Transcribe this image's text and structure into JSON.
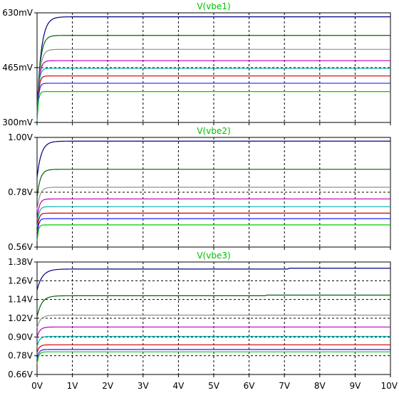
{
  "chart_data": [
    {
      "type": "line",
      "title": "V(vbe1)",
      "x_range": [
        0,
        10
      ],
      "ylim": [
        300,
        630
      ],
      "y_unit": "mV",
      "yticks": [
        {
          "value": 630,
          "label": "630mV"
        },
        {
          "value": 465,
          "label": "465mV"
        },
        {
          "value": 300,
          "label": "300mV"
        }
      ],
      "grid": true,
      "series": [
        {
          "color": "#000080",
          "start": 340,
          "final": 618,
          "tau": 0.12
        },
        {
          "color": "#006400",
          "start": 335,
          "final": 562,
          "tau": 0.09
        },
        {
          "color": "#909090",
          "start": 330,
          "final": 520,
          "tau": 0.08
        },
        {
          "color": "#c000c0",
          "start": 325,
          "final": 486,
          "tau": 0.06
        },
        {
          "color": "#00b0b0",
          "start": 320,
          "final": 463,
          "tau": 0.05
        },
        {
          "color": "#d00000",
          "start": 315,
          "final": 440,
          "tau": 0.045
        },
        {
          "color": "#2020ff",
          "start": 310,
          "final": 418,
          "tau": 0.04
        },
        {
          "color": "#00cc00",
          "start": 305,
          "final": 393,
          "tau": 0.035
        }
      ]
    },
    {
      "type": "line",
      "title": "V(vbe2)",
      "x_range": [
        0,
        10
      ],
      "ylim": [
        0.56,
        1.0
      ],
      "y_unit": "V",
      "yticks": [
        {
          "value": 1.0,
          "label": "1.00V"
        },
        {
          "value": 0.78,
          "label": "0.78V"
        },
        {
          "value": 0.56,
          "label": "0.56V"
        }
      ],
      "grid": true,
      "series": [
        {
          "color": "#000080",
          "start": 0.84,
          "final": 0.985,
          "tau": 0.12
        },
        {
          "color": "#006400",
          "start": 0.76,
          "final": 0.872,
          "tau": 0.09
        },
        {
          "color": "#909090",
          "start": 0.71,
          "final": 0.8,
          "tau": 0.08
        },
        {
          "color": "#c000c0",
          "start": 0.67,
          "final": 0.753,
          "tau": 0.06
        },
        {
          "color": "#00b0b0",
          "start": 0.64,
          "final": 0.722,
          "tau": 0.05
        },
        {
          "color": "#d00000",
          "start": 0.62,
          "final": 0.696,
          "tau": 0.045
        },
        {
          "color": "#2020ff",
          "start": 0.6,
          "final": 0.674,
          "tau": 0.04
        },
        {
          "color": "#00cc00",
          "start": 0.585,
          "final": 0.649,
          "tau": 0.035
        }
      ]
    },
    {
      "type": "line",
      "title": "V(vbe3)",
      "x_range": [
        0,
        10
      ],
      "x_ticks": [
        "0V",
        "1V",
        "2V",
        "3V",
        "4V",
        "5V",
        "6V",
        "7V",
        "8V",
        "9V",
        "10V"
      ],
      "ylim": [
        0.66,
        1.38
      ],
      "y_unit": "V",
      "yticks": [
        {
          "value": 1.38,
          "label": "1.38V"
        },
        {
          "value": 1.26,
          "label": "1.26V"
        },
        {
          "value": 1.14,
          "label": "1.14V"
        },
        {
          "value": 1.02,
          "label": "1.02V"
        },
        {
          "value": 0.9,
          "label": "0.90V"
        },
        {
          "value": 0.78,
          "label": "0.78V"
        },
        {
          "value": 0.66,
          "label": "0.66V"
        }
      ],
      "grid": true,
      "series": [
        {
          "color": "#000080",
          "start": 1.2,
          "final": 1.335,
          "tau": 0.15,
          "step_x": 7.1,
          "step_dy": 0.005
        },
        {
          "color": "#006400",
          "start": 1.03,
          "final": 1.164,
          "tau": 0.13,
          "step_x": 6.5,
          "step_dy": 0.004
        },
        {
          "color": "#909090",
          "start": 0.96,
          "final": 1.04,
          "tau": 0.1
        },
        {
          "color": "#c000c0",
          "start": 0.9,
          "final": 0.964,
          "tau": 0.08
        },
        {
          "color": "#00b0b0",
          "start": 0.84,
          "final": 0.904,
          "tau": 0.07
        },
        {
          "color": "#d00000",
          "start": 0.8,
          "final": 0.85,
          "tau": 0.06
        },
        {
          "color": "#2020ff",
          "start": 0.76,
          "final": 0.82,
          "tau": 0.05
        },
        {
          "color": "#00cc00",
          "start": 0.73,
          "final": 0.805,
          "tau": 0.045
        }
      ]
    }
  ],
  "colors": {
    "background": "#ffffff",
    "title": "#00c000",
    "grid": "#000000",
    "frame": "#000000"
  }
}
